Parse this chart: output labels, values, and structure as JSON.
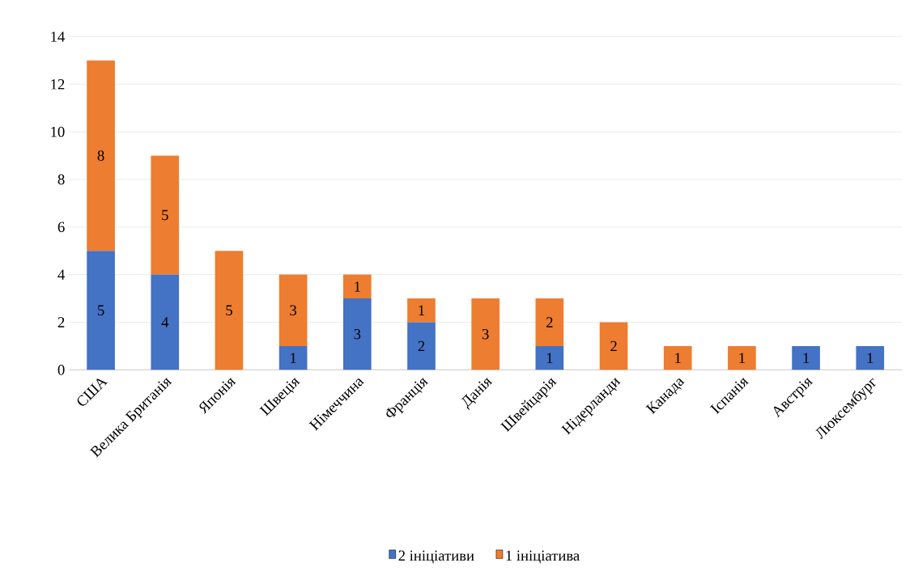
{
  "chart_data": {
    "type": "bar",
    "stacked": true,
    "categories": [
      "США",
      "Велика Британія",
      "Японія",
      "Швеція",
      "Німеччина",
      "Франція",
      "Данія",
      "Швейцарія",
      "Нідерланди",
      "Канада",
      "Іспанія",
      "Австрія",
      "Люксембург"
    ],
    "series": [
      {
        "name": "2 ініціативи",
        "color": "#4472c4",
        "values": [
          5,
          4,
          0,
          1,
          3,
          2,
          0,
          1,
          0,
          0,
          0,
          1,
          1
        ],
        "value_labels": [
          "5",
          "4",
          null,
          "1",
          "3",
          "2",
          null,
          "1",
          null,
          null,
          null,
          "1",
          "1"
        ]
      },
      {
        "name": "1 ініціатива",
        "color": "#ed7d31",
        "values": [
          8,
          5,
          5,
          3,
          1,
          1,
          3,
          2,
          2,
          1,
          1,
          0,
          0
        ],
        "value_labels": [
          "8",
          "5",
          "5",
          "3",
          "1",
          "1",
          "3",
          "2",
          "2",
          "1",
          "1",
          null,
          null
        ]
      }
    ],
    "ylim": [
      0,
      14
    ],
    "yticks": [
      0,
      2,
      4,
      6,
      8,
      10,
      12,
      14
    ],
    "grid": "y",
    "legend": "bottom"
  }
}
